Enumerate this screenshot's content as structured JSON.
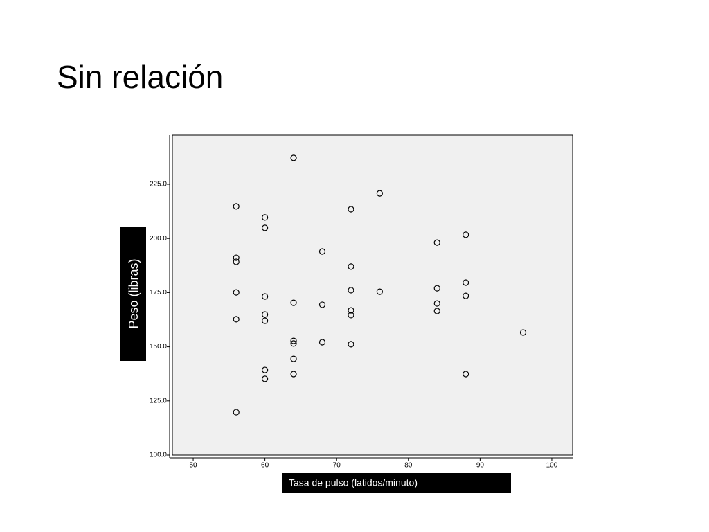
{
  "chart_data": {
    "type": "scatter",
    "title": "Sin relación",
    "x_label": "Tasa de pulso (latidos/minuto)",
    "y_label": "Peso (libras)",
    "color": "#000000",
    "background": "#f0f0f0",
    "x": [
      64,
      76,
      56,
      60,
      72,
      60,
      84,
      88,
      68,
      56,
      56,
      72,
      84,
      88,
      56,
      72,
      76,
      60,
      88,
      64,
      68,
      84,
      72,
      84,
      60,
      72,
      56,
      60,
      96,
      64,
      64,
      68,
      72,
      64,
      60,
      60,
      64,
      88,
      56
    ],
    "values": [
      237.2,
      220.8,
      214.8,
      209.7,
      213.5,
      204.9,
      198.1,
      201.7,
      194.0,
      191.1,
      189.2,
      187.0,
      177.0,
      179.6,
      175.1,
      176.1,
      175.4,
      173.2,
      173.5,
      170.3,
      169.4,
      170.0,
      166.8,
      166.5,
      164.9,
      164.6,
      162.7,
      162.0,
      156.6,
      152.7,
      151.5,
      152.1,
      151.2,
      144.4,
      139.3,
      135.2,
      137.4,
      137.4,
      119.8
    ],
    "xlim": [
      47.1,
      102.9
    ],
    "xticks": [
      50,
      60,
      70,
      80,
      90,
      100
    ],
    "ylim": [
      100,
      247.7
    ],
    "yticks": [
      {
        "value": 100,
        "label": "100.0"
      },
      {
        "value": 125,
        "label": "125.0"
      },
      {
        "value": 150,
        "label": "150.0"
      },
      {
        "value": 175,
        "label": "175.0"
      },
      {
        "value": 200,
        "label": "200.0"
      },
      {
        "value": 225,
        "label": "225.0"
      }
    ]
  }
}
